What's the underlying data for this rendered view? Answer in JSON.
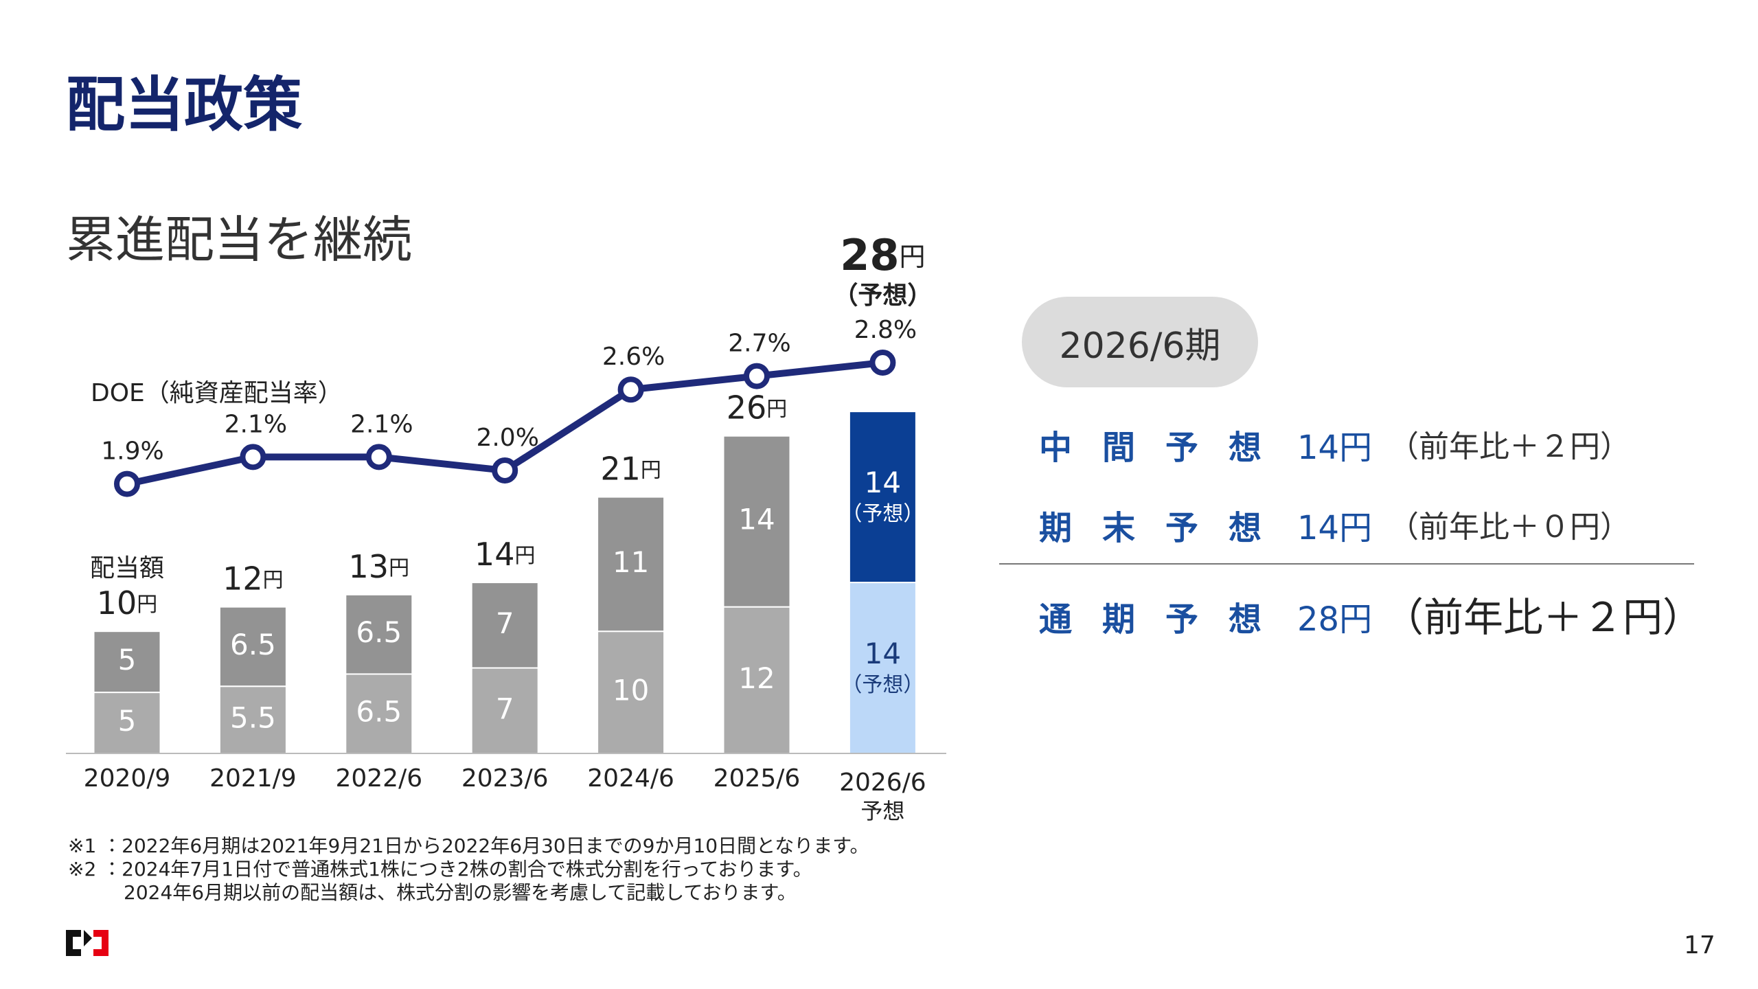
{
  "title": "配当政策",
  "subtitle": "累進配当を継続",
  "chart_data": {
    "type": "bar",
    "stacked": true,
    "categories": [
      "2020/9",
      "2021/9",
      "2022/6",
      "2023/6",
      "2024/6",
      "2025/6",
      "2026/6"
    ],
    "category_notes": [
      null,
      null,
      null,
      null,
      null,
      null,
      "予想"
    ],
    "ylim": [
      0,
      32
    ],
    "bar_label": "配当額",
    "series": [
      {
        "values": [
          5,
          5.5,
          6.5,
          7,
          10,
          12,
          14
        ],
        "colors": [
          "#ababab",
          "#ababab",
          "#ababab",
          "#ababab",
          "#ababab",
          "#ababab",
          "#bcd8f8"
        ],
        "notes": [
          null,
          null,
          null,
          null,
          null,
          null,
          "（予想）"
        ]
      },
      {
        "values": [
          5,
          6.5,
          6.5,
          7,
          11,
          14,
          14
        ],
        "colors": [
          "#939393",
          "#939393",
          "#939393",
          "#939393",
          "#939393",
          "#939393",
          "#0b3f94"
        ],
        "notes": [
          null,
          null,
          null,
          null,
          null,
          null,
          "（予想）"
        ]
      }
    ],
    "totals": [
      10,
      12,
      13,
      14,
      21,
      26,
      28
    ],
    "total_unit": "円",
    "total_notes": [
      null,
      null,
      null,
      null,
      null,
      null,
      "（予想）"
    ],
    "line": {
      "name": "DOE（純資産配当率）",
      "axis": "y2",
      "color": "#1f2a7a",
      "values": [
        1.9,
        2.1,
        2.1,
        2.0,
        2.6,
        2.7,
        2.8
      ],
      "value_labels": [
        "1.9%",
        "2.1%",
        "2.1%",
        "2.0%",
        "2.6%",
        "2.7%",
        "2.8%"
      ]
    },
    "y2lim": [
      -0.1,
      2.8
    ]
  },
  "forecast_panel": {
    "period": "2026/6期",
    "rows": [
      {
        "label": "中間予想",
        "value": "14円",
        "note": "（前年比＋２円）"
      },
      {
        "label": "期末予想",
        "value": "14円",
        "note": "（前年比＋０円）"
      },
      {
        "label": "通期予想",
        "value": "28円",
        "note": "（前年比＋２円）"
      }
    ]
  },
  "footnotes": [
    "※1 ：2022年6月期は2021年9月21日から2022年6月30日までの9か月10日間となります。",
    "※2 ：2024年7月1日付で普通株式1株につき2株の割合で株式分割を行っております。",
    "2024年6月期以前の配当額は、株式分割の影響を考慮して記載しております。"
  ],
  "page_number": "17"
}
